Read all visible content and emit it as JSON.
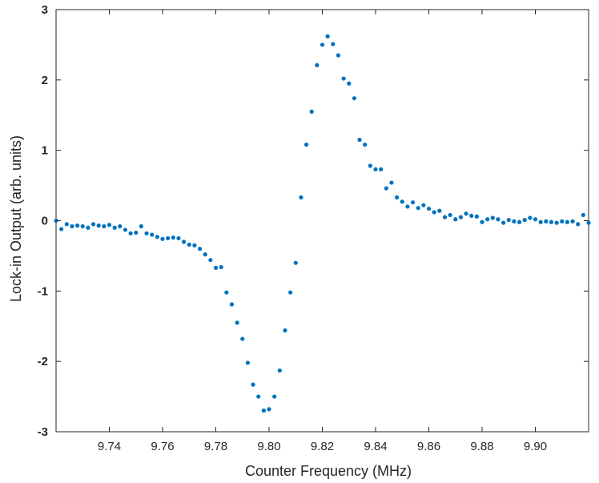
{
  "chart_data": {
    "type": "scatter",
    "title": "",
    "xlabel": "Counter Frequency (MHz)",
    "ylabel": "Lock-in Output (arb. units)",
    "xlim": [
      9.72,
      9.92
    ],
    "ylim": [
      -3,
      3
    ],
    "x_ticks": [
      9.74,
      9.76,
      9.78,
      9.8,
      9.82,
      9.84,
      9.86,
      9.88,
      9.9
    ],
    "x_tick_labels": [
      "9.74",
      "9.76",
      "9.78",
      "9.80",
      "9.82",
      "9.84",
      "9.86",
      "9.88",
      "9.90"
    ],
    "y_ticks": [
      -3,
      -2,
      -1,
      0,
      1,
      2,
      3
    ],
    "y_tick_labels": [
      "-3",
      "-2",
      "-1",
      "0",
      "1",
      "2",
      "3"
    ],
    "grid": false,
    "legend": "none",
    "marker_color": "#0072BD",
    "series": [
      {
        "x": [
          9.72,
          9.722,
          9.724,
          9.726,
          9.728,
          9.73,
          9.732,
          9.734,
          9.736,
          9.738,
          9.74,
          9.742,
          9.744,
          9.746,
          9.748,
          9.75,
          9.752,
          9.754,
          9.756,
          9.758,
          9.76,
          9.762,
          9.764,
          9.766,
          9.768,
          9.77,
          9.772,
          9.774,
          9.776,
          9.778,
          9.78,
          9.782,
          9.784,
          9.786,
          9.788,
          9.79,
          9.792,
          9.794,
          9.796,
          9.798,
          9.8,
          9.802,
          9.804,
          9.806,
          9.808,
          9.81,
          9.812,
          9.814,
          9.816,
          9.818,
          9.82,
          9.822,
          9.824,
          9.826,
          9.828,
          9.83,
          9.832,
          9.834,
          9.836,
          9.838,
          9.84,
          9.842,
          9.844,
          9.846,
          9.848,
          9.85,
          9.852,
          9.854,
          9.856,
          9.858,
          9.86,
          9.862,
          9.864,
          9.866,
          9.868,
          9.87,
          9.872,
          9.874,
          9.876,
          9.878,
          9.88,
          9.882,
          9.884,
          9.886,
          9.888,
          9.89,
          9.892,
          9.894,
          9.896,
          9.898,
          9.9,
          9.902,
          9.904,
          9.906,
          9.908,
          9.91,
          9.912,
          9.914,
          9.916,
          9.918,
          9.92
        ],
        "y": [
          0.0,
          -0.12,
          -0.05,
          -0.08,
          -0.07,
          -0.08,
          -0.1,
          -0.05,
          -0.07,
          -0.08,
          -0.06,
          -0.1,
          -0.08,
          -0.13,
          -0.18,
          -0.17,
          -0.08,
          -0.18,
          -0.2,
          -0.23,
          -0.26,
          -0.25,
          -0.24,
          -0.25,
          -0.3,
          -0.34,
          -0.35,
          -0.4,
          -0.48,
          -0.56,
          -0.67,
          -0.66,
          -1.02,
          -1.19,
          -1.45,
          -1.68,
          -2.02,
          -2.33,
          -2.5,
          -2.7,
          -2.68,
          -2.5,
          -2.13,
          -1.56,
          -1.02,
          -0.6,
          0.33,
          1.08,
          1.55,
          2.21,
          2.5,
          2.62,
          2.51,
          2.35,
          2.02,
          1.95,
          1.74,
          1.15,
          1.08,
          0.78,
          0.73,
          0.73,
          0.46,
          0.54,
          0.33,
          0.27,
          0.2,
          0.26,
          0.18,
          0.22,
          0.17,
          0.12,
          0.14,
          0.05,
          0.08,
          0.02,
          0.05,
          0.1,
          0.07,
          0.06,
          -0.02,
          0.02,
          0.04,
          0.02,
          -0.03,
          0.01,
          -0.01,
          -0.02,
          0.01,
          0.04,
          0.02,
          -0.02,
          -0.01,
          -0.02,
          -0.03,
          -0.01,
          -0.02,
          -0.01,
          -0.05,
          0.08,
          -0.03
        ]
      }
    ]
  }
}
